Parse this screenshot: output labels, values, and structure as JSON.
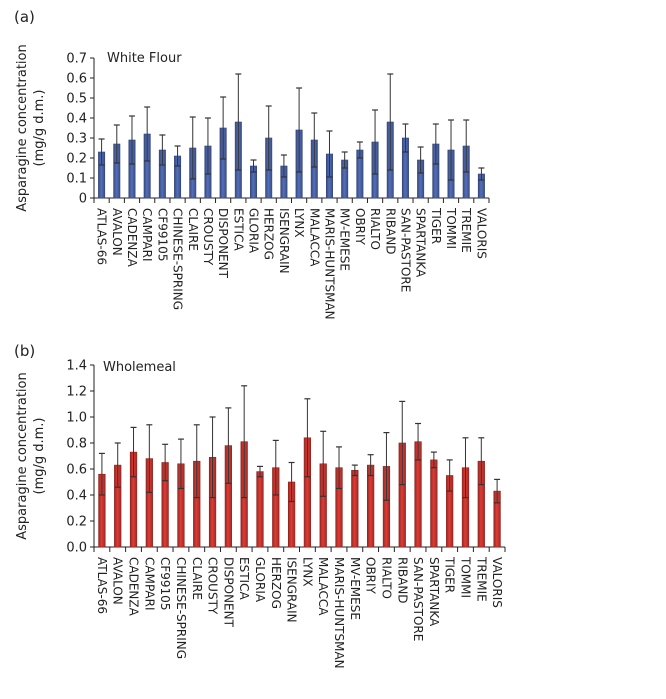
{
  "chart_data": [
    {
      "type": "bar",
      "panel_label": "(a)",
      "title": "White Flour",
      "xlabel": "",
      "ylabel": "Asparagine concentration",
      "ylabel2": "(mg/g d.m.)",
      "ylim": [
        0,
        0.7
      ],
      "yticks": [
        "0",
        "0.1",
        "0.2",
        "0.3",
        "0.4",
        "0.5",
        "0.6",
        "0.7"
      ],
      "ytick_values": [
        0,
        0.1,
        0.2,
        0.3,
        0.4,
        0.5,
        0.6,
        0.7
      ],
      "bar_color": "#4a63a8",
      "grid": false,
      "categories": [
        "ATLAS-66",
        "AVALON",
        "CADENZA",
        "CAMPARI",
        "CF99105",
        "CHINESE-SPRING",
        "CLAIRE",
        "CROUSTY",
        "DISPONENT",
        "ESTICA",
        "GLORIA",
        "HERZOG",
        "ISENGRAIN",
        "LYNX",
        "MALACCA",
        "MARIS-HUNTSMAN",
        "MV-EMESE",
        "OBRIY",
        "RIALTO",
        "RIBAND",
        "SAN-PASTORE",
        "SPARTANKA",
        "TIGER",
        "TOMMI",
        "TREMIE",
        "VALORIS"
      ],
      "values": [
        0.23,
        0.27,
        0.29,
        0.32,
        0.24,
        0.21,
        0.25,
        0.26,
        0.35,
        0.38,
        0.16,
        0.3,
        0.16,
        0.34,
        0.29,
        0.22,
        0.19,
        0.24,
        0.28,
        0.38,
        0.3,
        0.19,
        0.27,
        0.24,
        0.26,
        0.12
      ],
      "errors": [
        0.065,
        0.095,
        0.12,
        0.135,
        0.075,
        0.05,
        0.155,
        0.14,
        0.155,
        0.24,
        0.03,
        0.16,
        0.055,
        0.21,
        0.135,
        0.115,
        0.04,
        0.04,
        0.16,
        0.24,
        0.07,
        0.065,
        0.1,
        0.15,
        0.13,
        0.03
      ]
    },
    {
      "type": "bar",
      "panel_label": "(b)",
      "title": "Wholemeal",
      "xlabel": "",
      "ylabel": "Asparagine concentration",
      "ylabel2": "(mg/g d.m.)",
      "ylim": [
        0,
        1.4
      ],
      "yticks": [
        "0.0",
        "0.2",
        "0.4",
        "0.6",
        "0.8",
        "1.0",
        "1.2",
        "1.4"
      ],
      "ytick_values": [
        0,
        0.2,
        0.4,
        0.6,
        0.8,
        1.0,
        1.2,
        1.4
      ],
      "bar_color": "#c8352f",
      "grid": false,
      "categories": [
        "ATLAS-66",
        "AVALON",
        "CADENZA",
        "CAMPARI",
        "CF99105",
        "CHINESE-SPRING",
        "CLAIRE",
        "CROUSTY",
        "DISPONENT",
        "ESTICA",
        "GLORIA",
        "HERZOG",
        "ISENGRAIN",
        "LYNX",
        "MALACCA",
        "MARIS-HUNTSMAN",
        "MV-EMESE",
        "OBRIY",
        "RIALTO",
        "RIBAND",
        "SAN-PASTORE",
        "SPARTANKA",
        "TIGER",
        "TOMMI",
        "TREMIE",
        "VALORIS"
      ],
      "values": [
        0.56,
        0.63,
        0.73,
        0.68,
        0.65,
        0.64,
        0.66,
        0.69,
        0.78,
        0.81,
        0.58,
        0.61,
        0.5,
        0.84,
        0.64,
        0.61,
        0.59,
        0.63,
        0.62,
        0.8,
        0.81,
        0.67,
        0.55,
        0.61,
        0.66,
        0.43
      ],
      "errors": [
        0.16,
        0.17,
        0.19,
        0.26,
        0.14,
        0.19,
        0.28,
        0.31,
        0.29,
        0.43,
        0.04,
        0.21,
        0.15,
        0.3,
        0.25,
        0.16,
        0.04,
        0.08,
        0.26,
        0.32,
        0.14,
        0.06,
        0.12,
        0.23,
        0.18,
        0.09
      ]
    }
  ]
}
